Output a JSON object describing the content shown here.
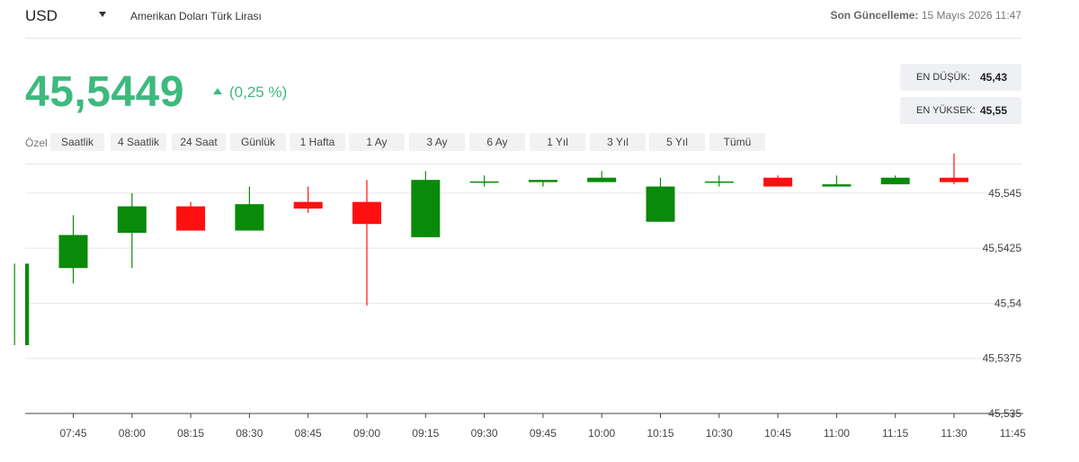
{
  "header": {
    "currency": "USD",
    "pair_name": "Amerikan Doları Türk Lirası",
    "updated_label": "Son Güncelleme:",
    "updated_value": "15 Mayıs 2026 11:47"
  },
  "quote": {
    "price": "45,5449",
    "change": "(0,25 %)",
    "direction": "up",
    "low_label": "EN DÜŞÜK:",
    "low_value": "45,43",
    "high_label": "EN YÜKSEK:",
    "high_value": "45,55"
  },
  "periods": {
    "custom_label": "Özel",
    "items": [
      "Saatlik",
      "4 Saatlik",
      "24 Saat",
      "Günlük",
      "1 Hafta",
      "1 Ay",
      "3 Ay",
      "6 Ay",
      "1 Yıl",
      "3 Yıl",
      "5 Yıl",
      "Tümü"
    ],
    "active": "4 Saatlik"
  },
  "colors": {
    "accent": "#3dba7e",
    "bull": "#0a8a0a",
    "bear": "#ff1010",
    "grid": "#e6e6e6"
  },
  "chart_data": {
    "type": "candlestick",
    "y_ticks": [
      "45,545",
      "45,5425",
      "45,54",
      "45,5375",
      "45,535"
    ],
    "y_tick_values": [
      45.545,
      45.5425,
      45.54,
      45.5375,
      45.535
    ],
    "ylim": [
      45.535,
      45.5463
    ],
    "x_ticks": [
      "07:45",
      "08:00",
      "08:15",
      "08:30",
      "08:45",
      "09:00",
      "09:15",
      "09:30",
      "09:45",
      "10:00",
      "10:15",
      "10:30",
      "10:45",
      "11:00",
      "11:15",
      "11:30",
      "11:45"
    ],
    "grid": true,
    "candles": [
      {
        "time": "07:30",
        "open": 45.5381,
        "close": 45.5418,
        "high": 45.5418,
        "low": 45.5381
      },
      {
        "time": "07:45",
        "open": 45.5416,
        "close": 45.5431,
        "high": 45.544,
        "low": 45.5409
      },
      {
        "time": "08:00",
        "open": 45.5432,
        "close": 45.5444,
        "high": 45.545,
        "low": 45.5416
      },
      {
        "time": "08:15",
        "open": 45.5444,
        "close": 45.5433,
        "high": 45.5446,
        "low": 45.5433
      },
      {
        "time": "08:30",
        "open": 45.5433,
        "close": 45.5445,
        "high": 45.5453,
        "low": 45.5433
      },
      {
        "time": "08:45",
        "open": 45.5446,
        "close": 45.5443,
        "high": 45.5453,
        "low": 45.5441
      },
      {
        "time": "09:00",
        "open": 45.5446,
        "close": 45.5436,
        "high": 45.5456,
        "low": 45.5399
      },
      {
        "time": "09:15",
        "open": 45.543,
        "close": 45.5456,
        "high": 45.546,
        "low": 45.543
      },
      {
        "time": "09:30",
        "open": 45.5455,
        "close": 45.5455,
        "high": 45.5458,
        "low": 45.5453
      },
      {
        "time": "09:45",
        "open": 45.5455,
        "close": 45.5456,
        "high": 45.5456,
        "low": 45.5453
      },
      {
        "time": "10:00",
        "open": 45.5455,
        "close": 45.5457,
        "high": 45.546,
        "low": 45.5455
      },
      {
        "time": "10:15",
        "open": 45.5437,
        "close": 45.5453,
        "high": 45.5457,
        "low": 45.5437
      },
      {
        "time": "10:30",
        "open": 45.5455,
        "close": 45.5455,
        "high": 45.5458,
        "low": 45.5453
      },
      {
        "time": "10:45",
        "open": 45.5457,
        "close": 45.5453,
        "high": 45.5458,
        "low": 45.5453
      },
      {
        "time": "11:00",
        "open": 45.5453,
        "close": 45.5454,
        "high": 45.5458,
        "low": 45.5453
      },
      {
        "time": "11:15",
        "open": 45.5454,
        "close": 45.5457,
        "high": 45.5458,
        "low": 45.5454
      },
      {
        "time": "11:30",
        "open": 45.5457,
        "close": 45.5455,
        "high": 45.5468,
        "low": 45.5454
      }
    ]
  }
}
